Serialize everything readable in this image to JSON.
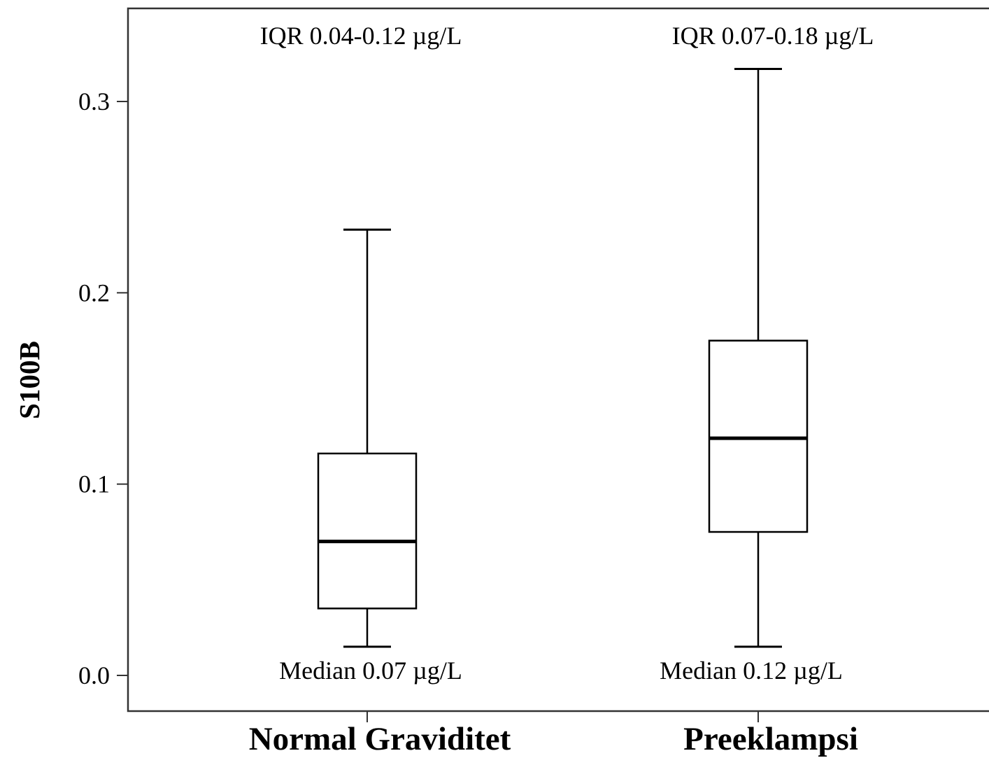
{
  "chart_data": {
    "type": "box",
    "ylabel": "S100B",
    "ylim": [
      -0.018,
      0.34
    ],
    "yticks": [
      0.0,
      0.1,
      0.2,
      0.3
    ],
    "ytick_labels": [
      "0.0",
      "0.1",
      "0.2",
      "0.3"
    ],
    "categories": [
      "Normal Graviditet",
      "Preeklampsi"
    ],
    "boxes": [
      {
        "category": "Normal Graviditet",
        "whisker_low": 0.015,
        "q1": 0.035,
        "median": 0.07,
        "q3": 0.116,
        "whisker_high": 0.233,
        "iqr_label": "IQR 0.04-0.12 µg/L",
        "median_label": "Median 0.07 µg/L"
      },
      {
        "category": "Preeklampsi",
        "whisker_low": 0.015,
        "q1": 0.075,
        "median": 0.124,
        "q3": 0.175,
        "whisker_high": 0.317,
        "iqr_label": "IQR 0.07-0.18 µg/L",
        "median_label": "Median 0.12 µg/L"
      }
    ],
    "grid": false,
    "legend": "none"
  }
}
